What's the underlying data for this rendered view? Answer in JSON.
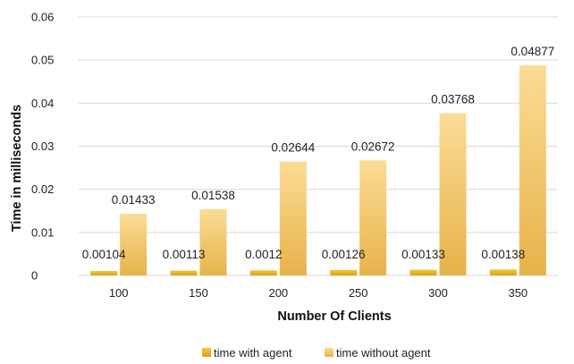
{
  "chart_data": {
    "type": "bar",
    "xlabel": "Number Of Clients",
    "ylabel": "Time in milliseconds",
    "categories": [
      "100",
      "150",
      "200",
      "250",
      "300",
      "350"
    ],
    "ylim": [
      0,
      0.06
    ],
    "yticks": [
      "0",
      "0.01",
      "0.02",
      "0.03",
      "0.04",
      "0.05",
      "0.06"
    ],
    "grid": true,
    "legend_position": "bottom",
    "series": [
      {
        "name": "time with agent",
        "values": [
          0.00104,
          0.00113,
          0.0012,
          0.00126,
          0.00133,
          0.00138
        ],
        "labels": [
          "0.00104",
          "0.00113",
          "0.0012",
          "0.00126",
          "0.00133",
          "0.00138"
        ],
        "color_top": "#f3c637",
        "color_bottom": "#d9a417"
      },
      {
        "name": "time without agent",
        "values": [
          0.01433,
          0.01538,
          0.02644,
          0.02672,
          0.03768,
          0.04877
        ],
        "labels": [
          "0.01433",
          "0.01538",
          "0.02644",
          "0.02672",
          "0.03768",
          "0.04877"
        ],
        "color_top": "#fbdc95",
        "color_bottom": "#e6b349"
      }
    ]
  }
}
